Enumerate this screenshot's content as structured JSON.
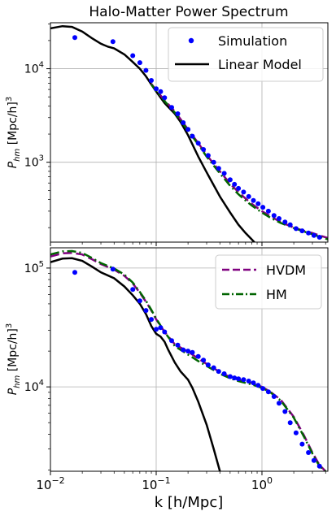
{
  "chart_data": [
    {
      "type": "line",
      "title": "Halo-Matter Power Spectrum",
      "xlabel": "",
      "ylabel": "P_hm [Mpc/h]^3",
      "xscale": "log",
      "yscale": "log",
      "xlim": [
        0.01,
        4.2
      ],
      "ylim": [
        140,
        31000
      ],
      "grid": true,
      "legend": {
        "position": "top-right",
        "entries": [
          "Simulation",
          "Linear Model"
        ]
      },
      "yticks": [
        {
          "value": 1000,
          "base": "10",
          "exp": "3"
        },
        {
          "value": 10000,
          "base": "10",
          "exp": "4"
        }
      ],
      "series": [
        {
          "name": "Simulation",
          "kind": "scatter",
          "color": "#0000ff",
          "x": [
            0.017,
            0.039,
            0.06,
            0.07,
            0.08,
            0.09,
            0.1,
            0.11,
            0.12,
            0.14,
            0.16,
            0.18,
            0.2,
            0.22,
            0.25,
            0.28,
            0.31,
            0.35,
            0.39,
            0.44,
            0.5,
            0.55,
            0.6,
            0.67,
            0.75,
            0.83,
            0.92,
            1.02,
            1.15,
            1.3,
            1.45,
            1.65,
            1.85,
            2.1,
            2.4,
            2.75,
            3.1,
            3.5
          ],
          "y": [
            21500,
            19500,
            13800,
            11600,
            9600,
            7500,
            6100,
            5700,
            4900,
            3850,
            3300,
            2650,
            2250,
            1900,
            1600,
            1370,
            1180,
            1000,
            860,
            760,
            650,
            580,
            525,
            480,
            430,
            390,
            360,
            330,
            300,
            270,
            250,
            230,
            215,
            195,
            185,
            175,
            165,
            158
          ]
        },
        {
          "name": "Linear Model",
          "kind": "line",
          "color": "#000000",
          "x": [
            0.01,
            0.013,
            0.016,
            0.02,
            0.025,
            0.03,
            0.035,
            0.04,
            0.05,
            0.06,
            0.07,
            0.08,
            0.09,
            0.1,
            0.11,
            0.12,
            0.13,
            0.15,
            0.17,
            0.2,
            0.25,
            0.3,
            0.4,
            0.5,
            0.6,
            0.7,
            0.8,
            0.9
          ],
          "y": [
            27000,
            28500,
            28000,
            25000,
            21000,
            18500,
            17200,
            16500,
            14200,
            11800,
            10000,
            8300,
            6800,
            5700,
            4900,
            4300,
            3900,
            3300,
            2700,
            1950,
            1150,
            780,
            430,
            290,
            215,
            175,
            150,
            130
          ]
        },
        {
          "name": "",
          "kind": "line",
          "dash": "long",
          "color": "#800080",
          "x": [
            0.09,
            0.1,
            0.12,
            0.15,
            0.2,
            0.25,
            0.3,
            0.35,
            0.4,
            0.5,
            0.6,
            0.7,
            0.8,
            1.0,
            1.2,
            1.5,
            2.0,
            2.5,
            3.0,
            3.5,
            4.2
          ],
          "y": [
            6900,
            5900,
            4600,
            3500,
            2250,
            1600,
            1200,
            960,
            800,
            590,
            480,
            410,
            360,
            300,
            265,
            230,
            200,
            185,
            175,
            165,
            155
          ]
        },
        {
          "name": "",
          "kind": "line",
          "dash": "dashdot",
          "color": "#006400",
          "x": [
            0.09,
            0.1,
            0.12,
            0.15,
            0.2,
            0.25,
            0.3,
            0.35,
            0.4,
            0.5,
            0.6,
            0.7,
            0.8,
            1.0,
            1.2,
            1.5,
            2.0,
            2.5,
            3.0,
            3.5,
            4.2
          ],
          "y": [
            6800,
            5800,
            4500,
            3400,
            2180,
            1550,
            1150,
            920,
            760,
            560,
            455,
            390,
            345,
            290,
            255,
            225,
            198,
            182,
            170,
            160,
            150
          ]
        }
      ]
    },
    {
      "type": "line",
      "title": "",
      "xlabel": "k [h/Mpc]",
      "ylabel": "P_hm [Mpc/h]^3",
      "xscale": "log",
      "yscale": "log",
      "xlim": [
        0.01,
        4.2
      ],
      "ylim": [
        1950,
        148000
      ],
      "grid": true,
      "legend": {
        "position": "top-right",
        "entries": [
          "HVDM",
          "HM"
        ]
      },
      "xticks": [
        {
          "value": 0.01,
          "base": "10",
          "exp": "−2"
        },
        {
          "value": 0.1,
          "base": "10",
          "exp": "−1"
        },
        {
          "value": 1,
          "base": "10",
          "exp": "0"
        }
      ],
      "yticks": [
        {
          "value": 10000,
          "base": "10",
          "exp": "4"
        },
        {
          "value": 100000,
          "base": "10",
          "exp": "5"
        }
      ],
      "series": [
        {
          "name": "",
          "kind": "scatter",
          "color": "#0000ff",
          "x": [
            0.017,
            0.039,
            0.06,
            0.07,
            0.08,
            0.09,
            0.1,
            0.11,
            0.12,
            0.14,
            0.16,
            0.18,
            0.2,
            0.22,
            0.25,
            0.28,
            0.31,
            0.35,
            0.39,
            0.44,
            0.5,
            0.55,
            0.6,
            0.67,
            0.75,
            0.83,
            0.92,
            1.02,
            1.15,
            1.3,
            1.45,
            1.65,
            1.85,
            2.1,
            2.4,
            2.75,
            3.1,
            3.5
          ],
          "y": [
            92000,
            98000,
            66000,
            53000,
            44000,
            37000,
            30500,
            31500,
            29000,
            24500,
            22500,
            20500,
            20000,
            19500,
            18000,
            16800,
            15300,
            14500,
            13500,
            12900,
            12200,
            11900,
            11700,
            11500,
            11200,
            10800,
            10300,
            9700,
            9100,
            8300,
            7300,
            6200,
            5000,
            4100,
            3300,
            2800,
            2400,
            2150
          ]
        },
        {
          "name": "",
          "kind": "line",
          "color": "#000000",
          "x": [
            0.01,
            0.013,
            0.016,
            0.02,
            0.025,
            0.03,
            0.04,
            0.05,
            0.06,
            0.07,
            0.08,
            0.09,
            0.1,
            0.11,
            0.12,
            0.13,
            0.15,
            0.17,
            0.2,
            0.22,
            0.25,
            0.3,
            0.35,
            0.4
          ],
          "y": [
            112000,
            120000,
            121000,
            115000,
            102000,
            92000,
            82000,
            70000,
            59000,
            50000,
            41000,
            32500,
            28000,
            26500,
            24000,
            20500,
            16000,
            13500,
            11500,
            9800,
            7500,
            4800,
            3000,
            1950
          ]
        },
        {
          "name": "HVDM",
          "kind": "line",
          "dash": "long",
          "color": "#800080",
          "x": [
            0.01,
            0.013,
            0.016,
            0.02,
            0.025,
            0.03,
            0.04,
            0.05,
            0.06,
            0.07,
            0.08,
            0.09,
            0.1,
            0.12,
            0.15,
            0.2,
            0.25,
            0.3,
            0.4,
            0.5,
            0.6,
            0.7,
            0.8,
            1.0,
            1.2,
            1.5,
            2.0,
            2.5,
            3.0,
            3.5,
            4.0
          ],
          "y": [
            125000,
            133000,
            134000,
            130000,
            118000,
            108000,
            97000,
            86000,
            74000,
            62000,
            52000,
            44000,
            37000,
            29000,
            22800,
            19800,
            17300,
            15600,
            13300,
            12100,
            11500,
            11100,
            10800,
            10000,
            9100,
            7800,
            5600,
            3900,
            2800,
            2200,
            1950
          ]
        },
        {
          "name": "HM",
          "kind": "line",
          "dash": "dashdot",
          "color": "#006400",
          "x": [
            0.01,
            0.013,
            0.016,
            0.02,
            0.025,
            0.03,
            0.04,
            0.05,
            0.06,
            0.07,
            0.08,
            0.09,
            0.1,
            0.12,
            0.15,
            0.2,
            0.25,
            0.3,
            0.4,
            0.5,
            0.6,
            0.7,
            0.8,
            1.0,
            1.2,
            1.5,
            2.0,
            2.5,
            3.0,
            3.5,
            4.0
          ],
          "y": [
            130000,
            138000,
            139000,
            134000,
            121000,
            110000,
            99000,
            88000,
            75500,
            63000,
            53000,
            44500,
            37500,
            29000,
            22000,
            18700,
            16500,
            15000,
            12900,
            11800,
            11200,
            10800,
            10500,
            9800,
            9000,
            7700,
            5500,
            3800,
            2750,
            2150,
            1950
          ]
        }
      ]
    }
  ]
}
